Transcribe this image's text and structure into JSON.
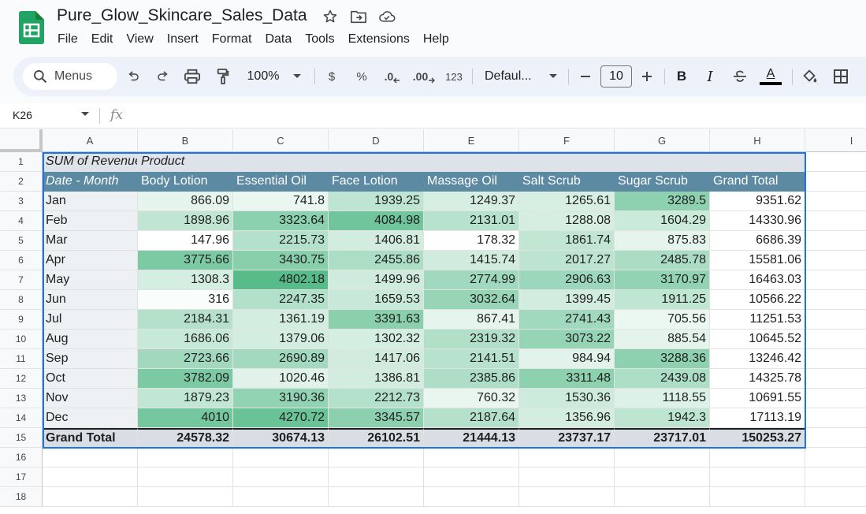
{
  "app": {
    "doc_title": "Pure_Glow_Skincare_Sales_Data",
    "menu": [
      "File",
      "Edit",
      "View",
      "Insert",
      "Format",
      "Data",
      "Tools",
      "Extensions",
      "Help"
    ]
  },
  "toolbar": {
    "search_label": "Menus",
    "zoom": "100%",
    "currency": "$",
    "percent": "%",
    "dec_decrease": ".0",
    "dec_increase": ".00",
    "number_format": "123",
    "font": "Defaul...",
    "font_size": "10",
    "bold": "B",
    "italic": "I",
    "text_color": "A"
  },
  "formula_bar": {
    "cell_ref": "K26",
    "fx": "fx"
  },
  "columns": [
    "A",
    "B",
    "C",
    "D",
    "E",
    "F",
    "G",
    "H",
    "I"
  ],
  "rows": [
    "1",
    "2",
    "3",
    "4",
    "5",
    "6",
    "7",
    "8",
    "9",
    "10",
    "11",
    "12",
    "13",
    "14",
    "15",
    "16",
    "17",
    "18"
  ],
  "pivot": {
    "title_a": "SUM of Revenue",
    "title_b": "Product",
    "row_header": "Date - Month",
    "products": [
      "Body Lotion",
      "Essential Oil",
      "Face Lotion",
      "Massage Oil",
      "Salt Scrub",
      "Sugar Scrub",
      "Grand Total"
    ],
    "data": [
      {
        "month": "Jan",
        "values": [
          "866.09",
          "741.8",
          "1939.25",
          "1249.37",
          "1265.61",
          "3289.5"
        ],
        "total": "9351.62"
      },
      {
        "month": "Feb",
        "values": [
          "1898.96",
          "3323.64",
          "4084.98",
          "2131.01",
          "1288.08",
          "1604.29"
        ],
        "total": "14330.96"
      },
      {
        "month": "Mar",
        "values": [
          "147.96",
          "2215.73",
          "1406.81",
          "178.32",
          "1861.74",
          "875.83"
        ],
        "total": "6686.39"
      },
      {
        "month": "Apr",
        "values": [
          "3775.66",
          "3430.75",
          "2455.86",
          "1415.74",
          "2017.27",
          "2485.78"
        ],
        "total": "15581.06"
      },
      {
        "month": "May",
        "values": [
          "1308.3",
          "4802.18",
          "1499.96",
          "2774.99",
          "2906.63",
          "3170.97"
        ],
        "total": "16463.03"
      },
      {
        "month": "Jun",
        "values": [
          "316",
          "2247.35",
          "1659.53",
          "3032.64",
          "1399.45",
          "1911.25"
        ],
        "total": "10566.22"
      },
      {
        "month": "Jul",
        "values": [
          "2184.31",
          "1361.19",
          "3391.63",
          "867.41",
          "2741.43",
          "705.56"
        ],
        "total": "11251.53"
      },
      {
        "month": "Aug",
        "values": [
          "1686.06",
          "1379.06",
          "1302.32",
          "2319.32",
          "3073.22",
          "885.54"
        ],
        "total": "10645.52"
      },
      {
        "month": "Sep",
        "values": [
          "2723.66",
          "2690.89",
          "1417.06",
          "2141.51",
          "984.94",
          "3288.36"
        ],
        "total": "13246.42"
      },
      {
        "month": "Oct",
        "values": [
          "3782.09",
          "1020.46",
          "1386.81",
          "2385.86",
          "3311.48",
          "2439.08"
        ],
        "total": "14325.78"
      },
      {
        "month": "Nov",
        "values": [
          "1879.23",
          "3190.36",
          "2212.73",
          "760.32",
          "1530.36",
          "1118.55"
        ],
        "total": "10691.55"
      },
      {
        "month": "Dec",
        "values": [
          "4010",
          "4270.72",
          "3345.57",
          "2187.64",
          "1356.96",
          "1942.3"
        ],
        "total": "17113.19"
      }
    ],
    "grand_total_label": "Grand Total",
    "grand_totals": [
      "24578.32",
      "30674.13",
      "26102.51",
      "21444.13",
      "23737.17",
      "23717.01",
      "150253.27"
    ]
  },
  "colors": {
    "header_bg": "#5b8aa2",
    "scale_low": "#ffffff",
    "scale_high": "#57bb8a"
  }
}
